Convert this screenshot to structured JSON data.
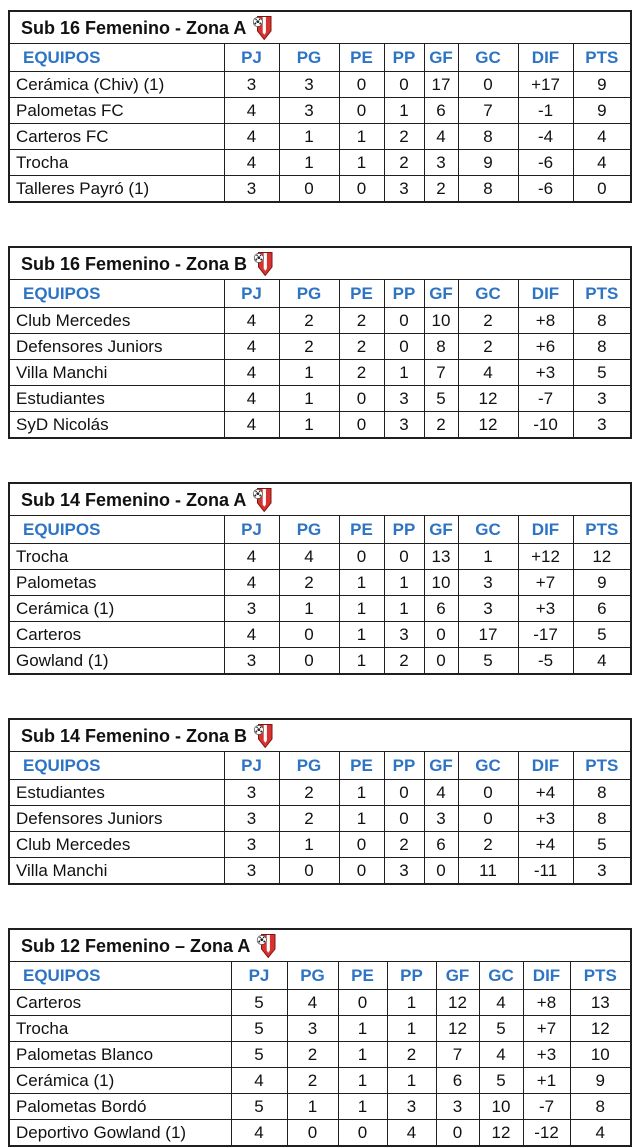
{
  "page": {
    "background_color": "#ffffff",
    "icon": "soccer-crest-icon"
  },
  "colors": {
    "header_text": "#2e74c4",
    "border": "#1f1f1f",
    "body_text": "#111111",
    "crest_red": "#d7322e",
    "crest_white": "#ffffff"
  },
  "columns": [
    "EQUIPOS",
    "PJ",
    "PG",
    "PE",
    "PP",
    "GF",
    "GC",
    "DIF",
    "PTS"
  ],
  "tables": [
    {
      "title": "Sub 16 Femenino - Zona A",
      "rows": [
        [
          "Cerámica (Chiv) (1)",
          "3",
          "3",
          "0",
          "0",
          "17",
          "0",
          "+17",
          "9"
        ],
        [
          "Palometas FC",
          "4",
          "3",
          "0",
          "1",
          "6",
          "7",
          "-1",
          "9"
        ],
        [
          "Carteros FC",
          "4",
          "1",
          "1",
          "2",
          "4",
          "8",
          "-4",
          "4"
        ],
        [
          "Trocha",
          "4",
          "1",
          "1",
          "2",
          "3",
          "9",
          "-6",
          "4"
        ],
        [
          "Talleres Payró (1)",
          "3",
          "0",
          "0",
          "3",
          "2",
          "8",
          "-6",
          "0"
        ]
      ]
    },
    {
      "title": "Sub 16 Femenino - Zona B",
      "rows": [
        [
          "Club Mercedes",
          "4",
          "2",
          "2",
          "0",
          "10",
          "2",
          "+8",
          "8"
        ],
        [
          "Defensores Juniors",
          "4",
          "2",
          "2",
          "0",
          "8",
          "2",
          "+6",
          "8"
        ],
        [
          "Villa Manchi",
          "4",
          "1",
          "2",
          "1",
          "7",
          "4",
          "+3",
          "5"
        ],
        [
          "Estudiantes",
          "4",
          "1",
          "0",
          "3",
          "5",
          "12",
          "-7",
          "3"
        ],
        [
          "SyD Nicolás",
          "4",
          "1",
          "0",
          "3",
          "2",
          "12",
          "-10",
          "3"
        ]
      ]
    },
    {
      "title": "Sub 14 Femenino - Zona A",
      "rows": [
        [
          "Trocha",
          "4",
          "4",
          "0",
          "0",
          "13",
          "1",
          "+12",
          "12"
        ],
        [
          "Palometas",
          "4",
          "2",
          "1",
          "1",
          "10",
          "3",
          "+7",
          "9"
        ],
        [
          "Cerámica (1)",
          "3",
          "1",
          "1",
          "1",
          "6",
          "3",
          "+3",
          "6"
        ],
        [
          "Carteros",
          "4",
          "0",
          "1",
          "3",
          "0",
          "17",
          "-17",
          "5"
        ],
        [
          "Gowland (1)",
          "3",
          "0",
          "1",
          "2",
          "0",
          "5",
          "-5",
          "4"
        ]
      ]
    },
    {
      "title": "Sub 14 Femenino - Zona B",
      "rows": [
        [
          "Estudiantes",
          "3",
          "2",
          "1",
          "0",
          "4",
          "0",
          "+4",
          "8"
        ],
        [
          "Defensores Juniors",
          "3",
          "2",
          "1",
          "0",
          "3",
          "0",
          "+3",
          "8"
        ],
        [
          "Club Mercedes",
          "3",
          "1",
          "0",
          "2",
          "6",
          "2",
          "+4",
          "5"
        ],
        [
          "Villa Manchi",
          "3",
          "0",
          "0",
          "3",
          "0",
          "11",
          "-11",
          "3"
        ]
      ]
    },
    {
      "title": "Sub 12 Femenino – Zona A",
      "rows": [
        [
          "Carteros",
          "5",
          "4",
          "0",
          "1",
          "12",
          "4",
          "+8",
          "13"
        ],
        [
          "Trocha",
          "5",
          "3",
          "1",
          "1",
          "12",
          "5",
          "+7",
          "12"
        ],
        [
          "Palometas Blanco",
          "5",
          "2",
          "1",
          "2",
          "7",
          "4",
          "+3",
          "10"
        ],
        [
          "Cerámica (1)",
          "4",
          "2",
          "1",
          "1",
          "6",
          "5",
          "+1",
          "9"
        ],
        [
          "Palometas Bordó",
          "5",
          "1",
          "1",
          "3",
          "3",
          "10",
          "-7",
          "8"
        ],
        [
          "Deportivo Gowland (1)",
          "4",
          "0",
          "0",
          "4",
          "0",
          "12",
          "-12",
          "4"
        ]
      ]
    }
  ]
}
